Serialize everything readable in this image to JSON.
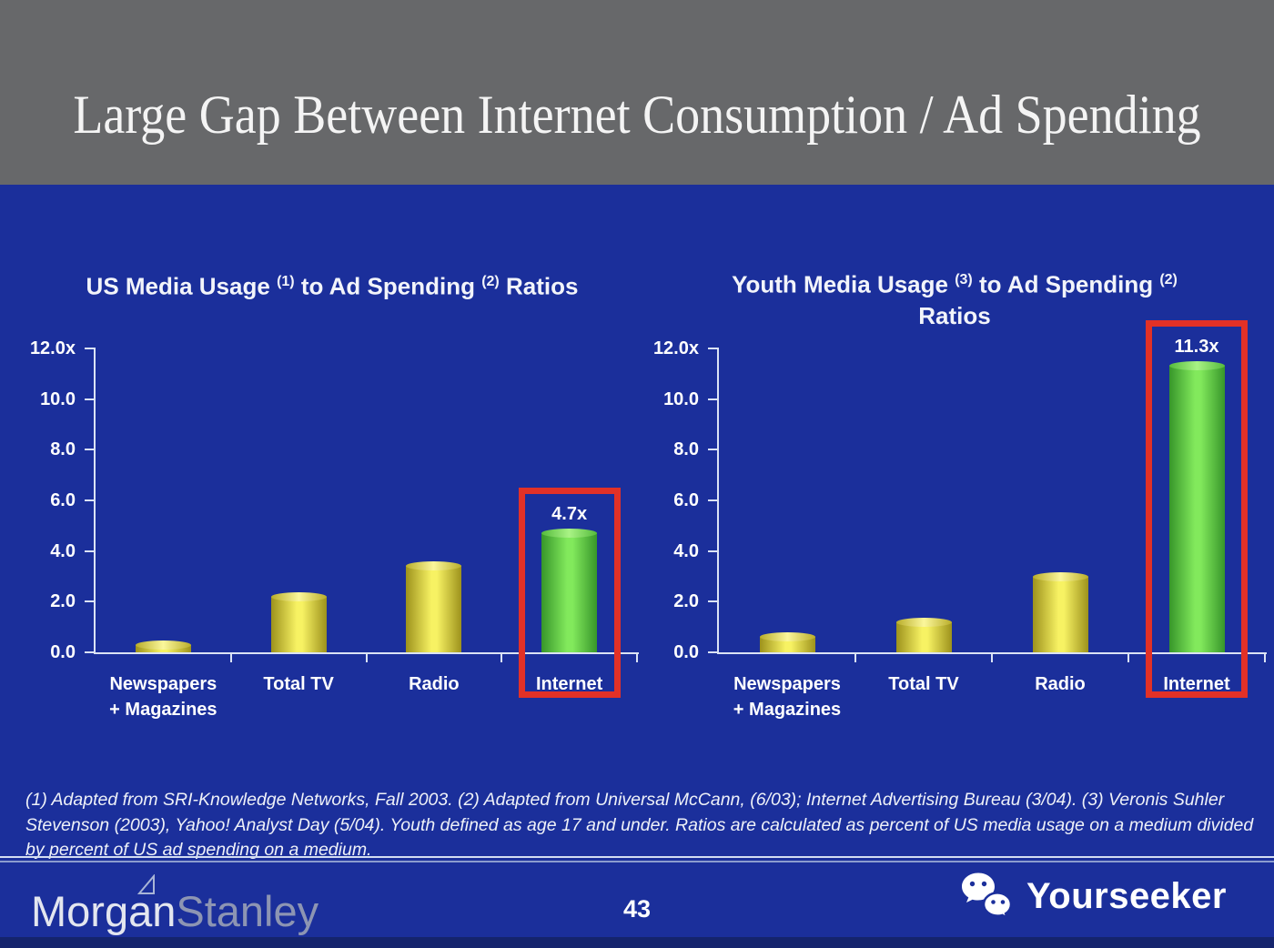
{
  "slide": {
    "title": "Large Gap Between Internet Consumption / Ad Spending",
    "page_number": "43",
    "footnote": "(1) Adapted from SRI-Knowledge Networks, Fall 2003.  (2) Adapted from Universal McCann, (6/03); Internet Advertising Bureau (3/04). (3) Veronis Suhler Stevenson (2003), Yahoo! Analyst Day (5/04).  Youth defined as age 17 and under.  Ratios are calculated as percent of US media usage on a medium divided by percent of US ad spending on a medium.",
    "brand": {
      "part1": "Morgan",
      "part2": "Stanley"
    },
    "watermark": {
      "label": "Yourseeker",
      "icon": "wechat-icon"
    }
  },
  "colors": {
    "background_blue": "#1b2f9b",
    "header_gray": "#67686a",
    "bar_yellow": "#f7f263",
    "bar_green": "#82e95c",
    "highlight_red": "#e23127",
    "axis_line": "#dbe3f5",
    "text_white": "#ffffff"
  },
  "chart_data": [
    {
      "type": "bar",
      "title": "US Media Usage (1) to Ad Spending (2) Ratios",
      "title_parts": {
        "pre": "US Media Usage ",
        "sup1": "(1)",
        "mid": " to Ad Spending ",
        "sup2": "(2)",
        "post": " Ratios"
      },
      "title_line2": "",
      "categories": [
        "Newspapers + Magazines",
        "Total TV",
        "Radio",
        "Internet"
      ],
      "category_labels": [
        [
          "Newspapers",
          "+ Magazines"
        ],
        [
          "Total TV"
        ],
        [
          "Radio"
        ],
        [
          "Internet"
        ]
      ],
      "values": [
        0.3,
        2.2,
        3.4,
        4.7
      ],
      "bar_colors": [
        "yellow",
        "yellow",
        "yellow",
        "green"
      ],
      "highlight_index": 3,
      "highlight_label": "4.7x",
      "xlabel": "",
      "ylabel": "",
      "ylim": [
        0,
        12
      ],
      "ytick_labels": [
        "12.0x",
        "10.0",
        "8.0",
        "6.0",
        "4.0",
        "2.0",
        "0.0"
      ],
      "grid": false,
      "legend": false
    },
    {
      "type": "bar",
      "title": "Youth Media Usage (3) to Ad Spending (2) Ratios",
      "title_parts": {
        "pre": "Youth Media Usage ",
        "sup1": "(3)",
        "mid": " to Ad Spending ",
        "sup2": "(2)",
        "post": ""
      },
      "title_line2": "Ratios",
      "categories": [
        "Newspapers + Magazines",
        "Total TV",
        "Radio",
        "Internet"
      ],
      "category_labels": [
        [
          "Newspapers",
          "+ Magazines"
        ],
        [
          "Total TV"
        ],
        [
          "Radio"
        ],
        [
          "Internet"
        ]
      ],
      "values": [
        0.6,
        1.2,
        3.0,
        11.3
      ],
      "bar_colors": [
        "yellow",
        "yellow",
        "yellow",
        "green"
      ],
      "highlight_index": 3,
      "highlight_label": "11.3x",
      "xlabel": "",
      "ylabel": "",
      "ylim": [
        0,
        12
      ],
      "ytick_labels": [
        "12.0x",
        "10.0",
        "8.0",
        "6.0",
        "4.0",
        "2.0",
        "0.0"
      ],
      "grid": false,
      "legend": false
    }
  ]
}
